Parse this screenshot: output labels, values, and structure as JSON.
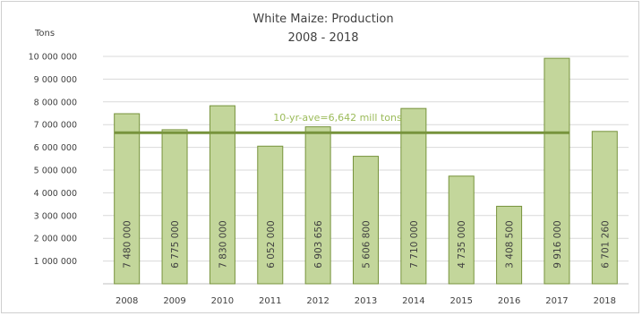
{
  "chart_data": {
    "type": "bar",
    "title": "White Maize: Production",
    "subtitle": "2008 - 2018",
    "ylabel": "Tons",
    "xlabel": "",
    "ylim": [
      0,
      10000000
    ],
    "yticks": [
      1000000,
      2000000,
      3000000,
      4000000,
      5000000,
      6000000,
      7000000,
      8000000,
      9000000,
      10000000
    ],
    "ytick_labels": [
      "1 000 000",
      "2 000 000",
      "3 000 000",
      "4 000 000",
      "5 000 000",
      "6 000 000",
      "7 000 000",
      "8 000 000",
      "9 000 000",
      "10 000 000"
    ],
    "categories": [
      "2008",
      "2009",
      "2010",
      "2011",
      "2012",
      "2013",
      "2014",
      "2015",
      "2016",
      "2017",
      "2018"
    ],
    "values": [
      7480000,
      6775000,
      7830000,
      6052000,
      6903656,
      5606800,
      7710000,
      4735000,
      3408500,
      9916000,
      6701260
    ],
    "value_labels": [
      "7 480 000",
      "6 775 000",
      "7 830 000",
      "6 052 000",
      "6 903 656",
      "5 606 800",
      "7 710 000",
      "4 735 000",
      "3 408 500",
      "9 916 000",
      "6 701 260"
    ],
    "average": {
      "value": 6642000,
      "label": "10-yr-ave=6,642 mill tons"
    },
    "grid": true,
    "legend": "none",
    "colors": {
      "bar_fill": "#c3d69b",
      "bar_stroke": "#77933c",
      "average_line": "#77933c",
      "average_label": "#9bbb59",
      "gridline": "#d9d9d9",
      "text": "#404040"
    }
  }
}
